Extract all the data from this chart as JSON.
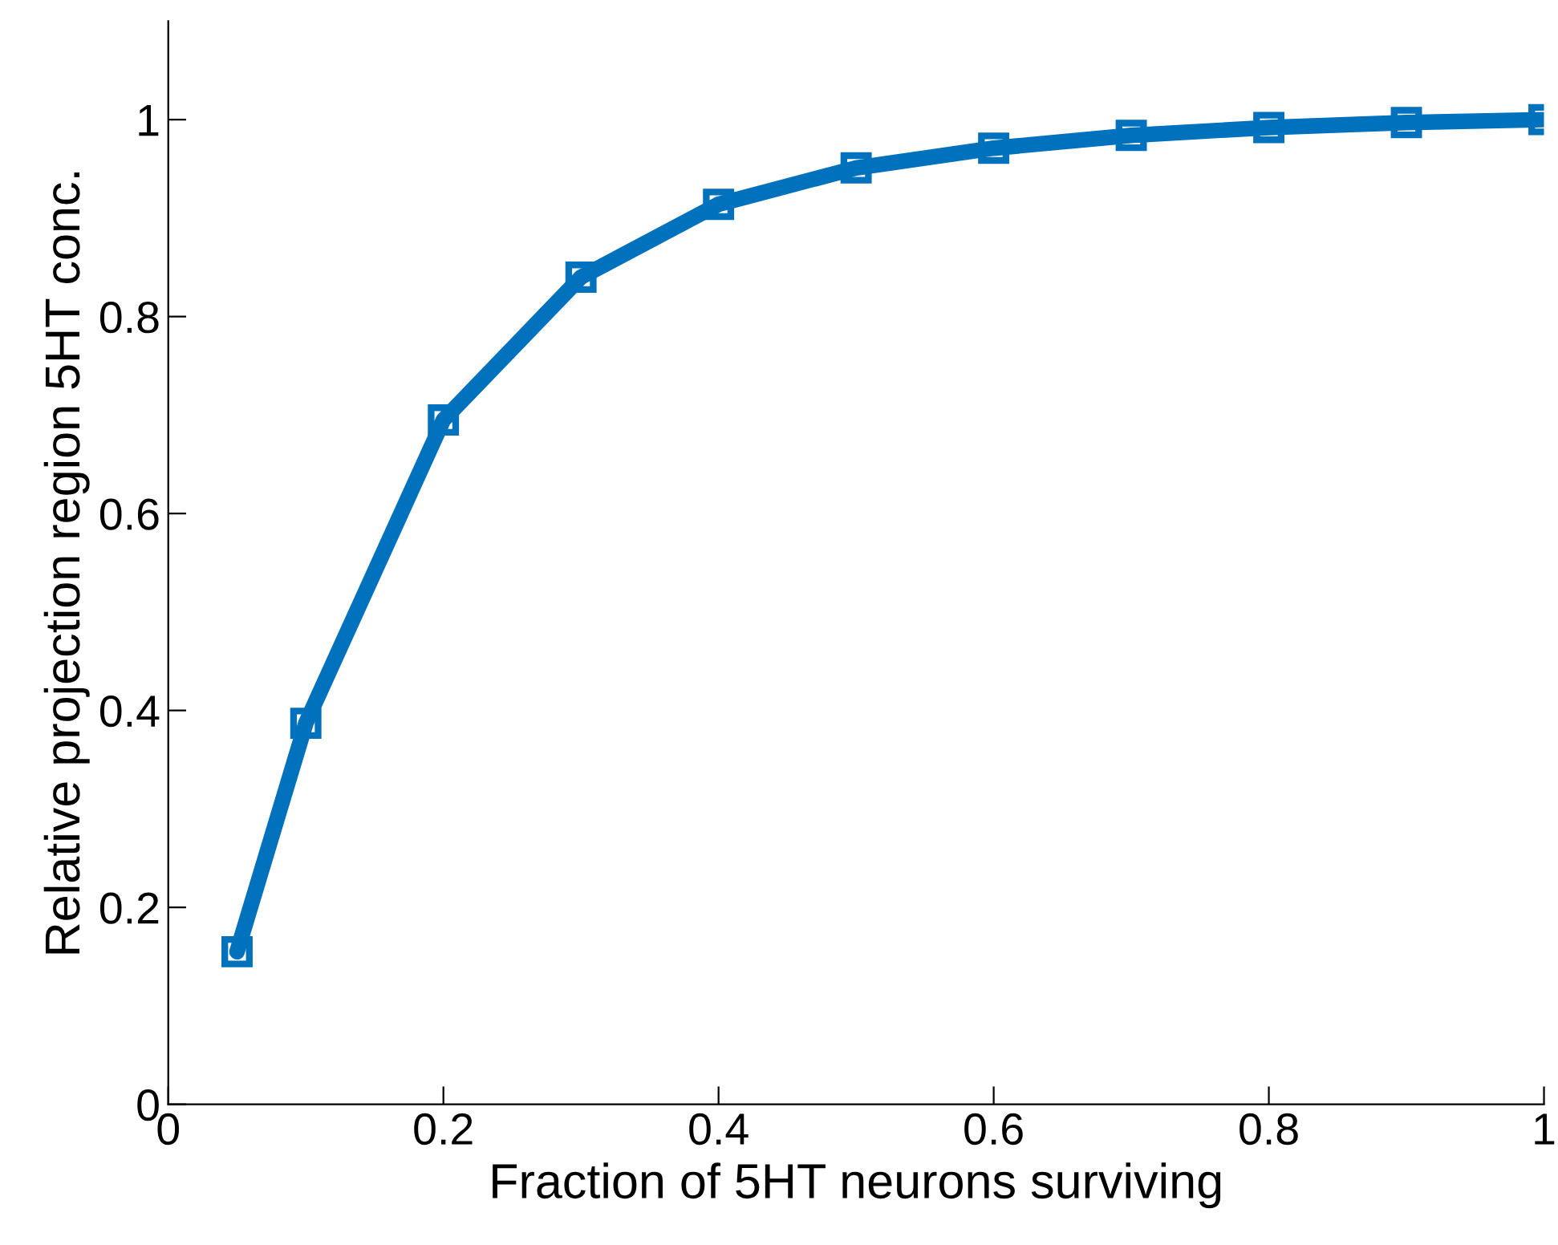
{
  "chart_data": {
    "type": "line",
    "xlabel": "Fraction of 5HT neurons surviving",
    "ylabel": "Relative projection region 5HT conc.",
    "x": [
      0.05,
      0.1,
      0.2,
      0.3,
      0.4,
      0.5,
      0.6,
      0.7,
      0.8,
      0.9,
      1.0
    ],
    "series": [
      {
        "color": "#0072bd",
        "values": [
          0.155,
          0.387,
          0.695,
          0.84,
          0.914,
          0.951,
          0.971,
          0.984,
          0.992,
          0.997,
          1.0
        ]
      }
    ],
    "xlim": [
      0,
      1
    ],
    "ylim": [
      0,
      1.1
    ],
    "xticks": [
      0,
      0.2,
      0.4,
      0.6,
      0.8,
      1
    ],
    "yticks": [
      0,
      0.2,
      0.4,
      0.6,
      0.8,
      1
    ],
    "marker": "square",
    "line_style": "solid",
    "grid": false,
    "legend": false
  }
}
